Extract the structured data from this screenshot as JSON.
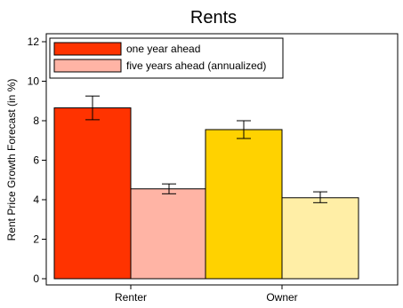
{
  "chart_data": {
    "type": "bar",
    "title": "Rents",
    "xlabel": "",
    "ylabel": "Rent Price Growth Forecast (in %)",
    "ylim": [
      0,
      12
    ],
    "yticks": [
      0,
      2,
      4,
      6,
      8,
      10,
      12
    ],
    "categories": [
      "Renter",
      "Owner"
    ],
    "grid": false,
    "legend_position": "top-left",
    "legend_labels": [
      "one year ahead",
      "five years ahead (annualized)"
    ],
    "legend_colors": [
      "#FF3300",
      "#FFB4A5"
    ],
    "series": [
      {
        "name": "one year ahead",
        "values": [
          8.65,
          7.55
        ],
        "err_low": [
          8.05,
          7.1
        ],
        "err_high": [
          9.25,
          8.0
        ],
        "colors": [
          "#FF3300",
          "#FFD200"
        ]
      },
      {
        "name": "five years ahead (annualized)",
        "values": [
          4.55,
          4.1
        ],
        "err_low": [
          4.3,
          3.85
        ],
        "err_high": [
          4.8,
          4.4
        ],
        "colors": [
          "#FFB4A5",
          "#FFEEA6"
        ]
      }
    ]
  }
}
